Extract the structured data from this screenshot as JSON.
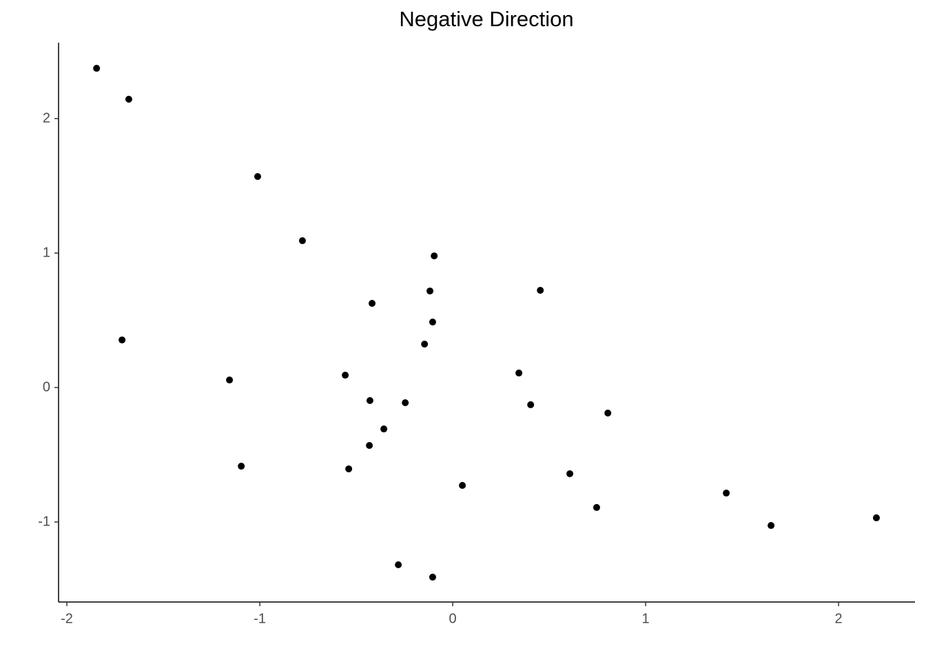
{
  "chart_data": {
    "type": "scatter",
    "title": "Negative Direction",
    "x": [
      -1.846,
      -1.679,
      -1.011,
      -0.779,
      -0.096,
      -0.118,
      0.454,
      -0.418,
      -0.104,
      -1.714,
      -0.146,
      -1.157,
      -0.557,
      0.343,
      -0.429,
      -0.246,
      0.404,
      0.804,
      -0.357,
      -0.432,
      -1.096,
      -0.539,
      0.607,
      0.05,
      1.418,
      0.746,
      2.196,
      1.65,
      -0.282,
      -0.104
    ],
    "values": [
      2.374,
      2.144,
      1.569,
      1.092,
      0.979,
      0.718,
      0.723,
      0.626,
      0.487,
      0.354,
      0.323,
      0.056,
      0.092,
      0.108,
      -0.097,
      -0.113,
      -0.128,
      -0.19,
      -0.308,
      -0.431,
      -0.585,
      -0.605,
      -0.641,
      -0.728,
      -0.785,
      -0.892,
      -0.969,
      -1.026,
      -1.318,
      -1.41
    ],
    "color": "#000000",
    "xlim": [
      -2.043,
      2.396
    ],
    "ylim": [
      -1.595,
      2.564
    ],
    "xticks": [
      -2,
      -1,
      0,
      1,
      2
    ],
    "yticks": [
      -1,
      0,
      1,
      2
    ],
    "grid": false
  }
}
